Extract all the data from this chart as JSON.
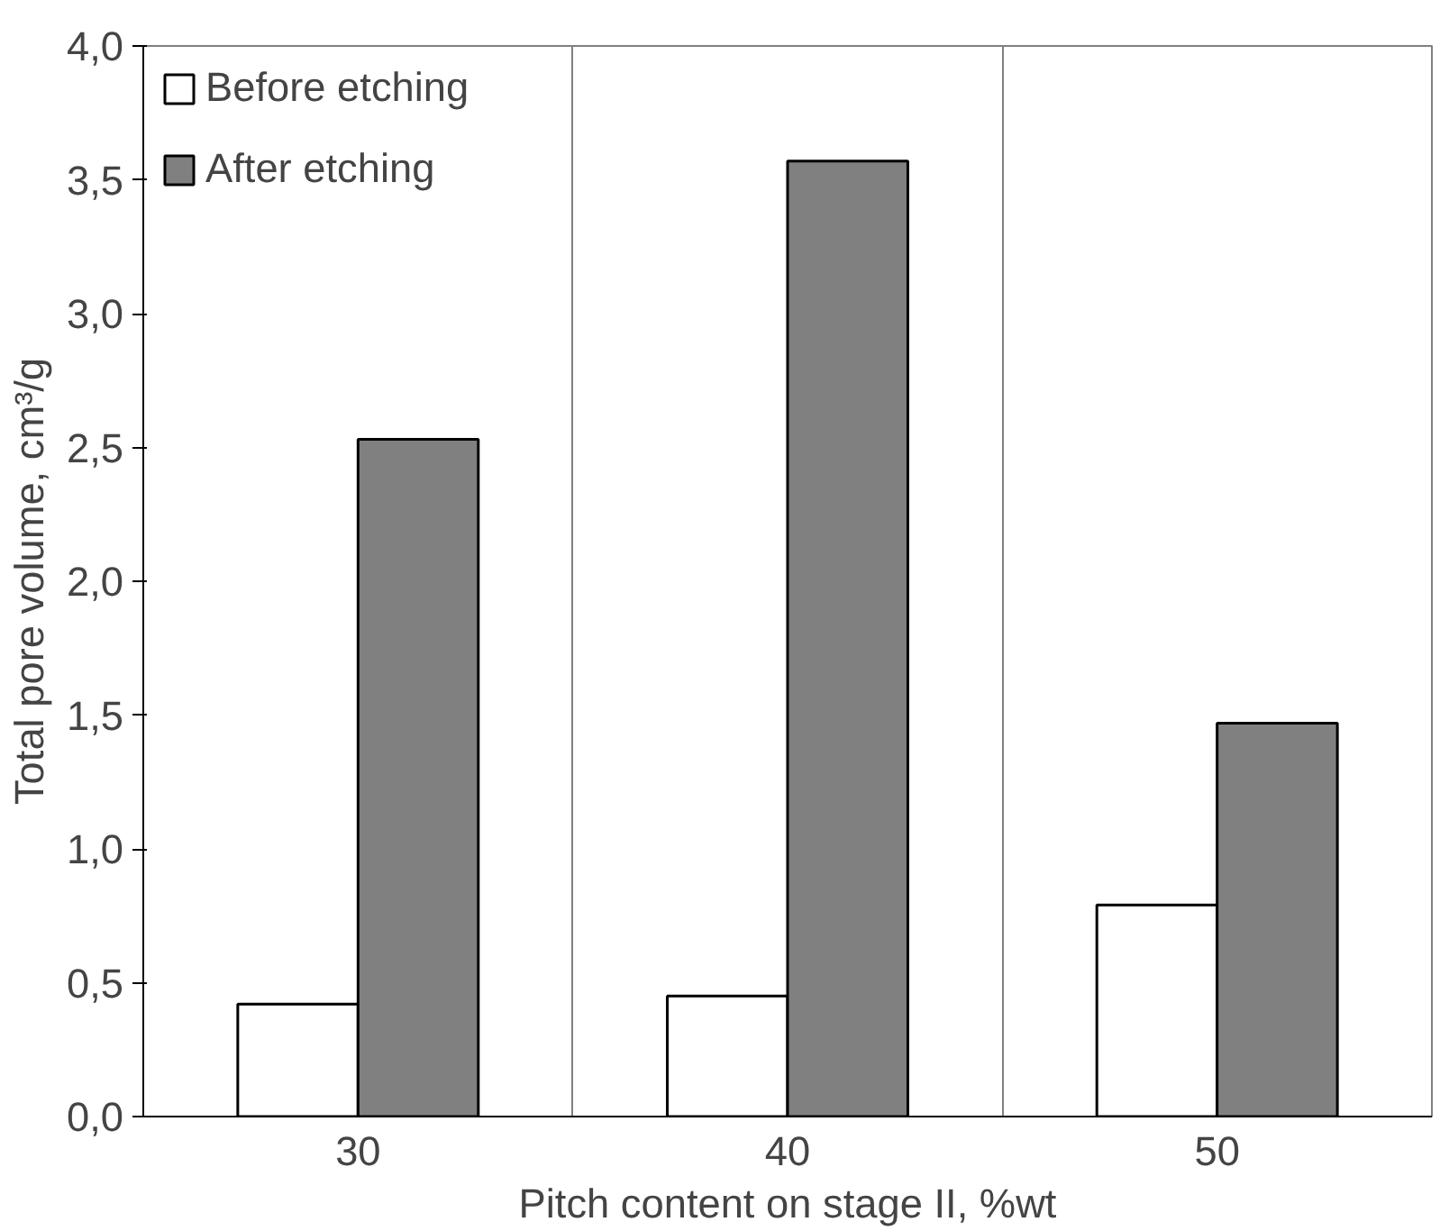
{
  "chart_data": {
    "type": "bar",
    "xlabel": "Pitch content on stage II, %wt",
    "ylabel": "Total pore volume, cm³/g",
    "categories": [
      "30",
      "40",
      "50"
    ],
    "series": [
      {
        "name": "Before etching",
        "color": "#ffffff",
        "values": [
          0.42,
          0.45,
          0.79
        ]
      },
      {
        "name": "After etching",
        "color": "#808080",
        "values": [
          2.53,
          3.57,
          1.47
        ]
      }
    ],
    "ylim": [
      0,
      4
    ],
    "yticks": [
      {
        "value": 0,
        "label": "0,0"
      },
      {
        "value": 0.5,
        "label": "0,5"
      },
      {
        "value": 1,
        "label": "1,0"
      },
      {
        "value": 1.5,
        "label": "1,5"
      },
      {
        "value": 2,
        "label": "2,0"
      },
      {
        "value": 2.5,
        "label": "2,5"
      },
      {
        "value": 3,
        "label": "3,0"
      },
      {
        "value": 3.5,
        "label": "3,5"
      },
      {
        "value": 4,
        "label": "4,0"
      }
    ],
    "grid": "x",
    "legend": "top left"
  }
}
